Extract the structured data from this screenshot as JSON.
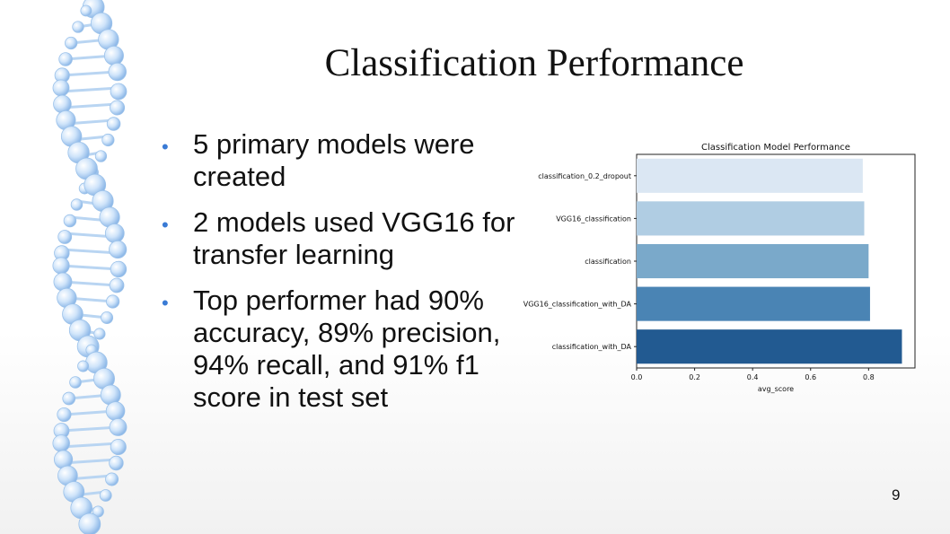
{
  "slide": {
    "title": "Classification Performance",
    "bullets": [
      "5 primary models were created",
      "2 models used VGG16 for transfer learning",
      "Top performer had 90% accuracy, 89% precision, 94% recall, and 91% f1 score in test set"
    ],
    "page_number": "9",
    "bullet_color": "#3a7bd5"
  },
  "chart_data": {
    "type": "bar",
    "orientation": "horizontal",
    "title": "Classification Model Performance",
    "xlabel": "avg_score",
    "ylabel": "",
    "categories": [
      "classification_0.2_dropout",
      "VGG16_classification",
      "classification",
      "VGG16_classification_with_DA",
      "classification_with_DA"
    ],
    "values": [
      0.78,
      0.785,
      0.8,
      0.805,
      0.915
    ],
    "colors": [
      "#dbe7f3",
      "#b0cde3",
      "#7aa9ca",
      "#4a84b4",
      "#225a91"
    ],
    "xlim": [
      0,
      0.96
    ],
    "xticks": [
      "0.0",
      "0.2",
      "0.4",
      "0.6",
      "0.8"
    ],
    "grid": false
  }
}
